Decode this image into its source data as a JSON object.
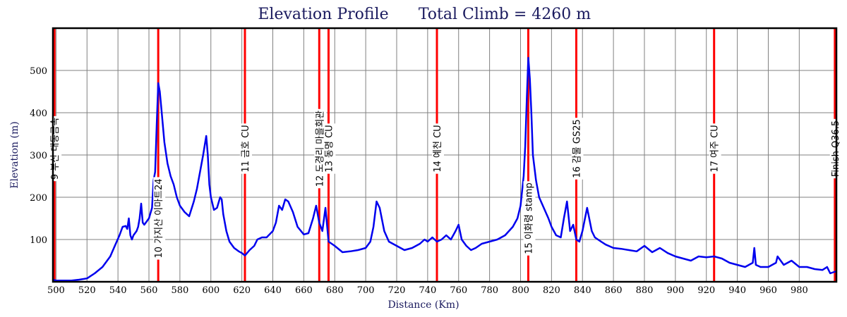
{
  "chart_data": {
    "type": "line",
    "title": "Elevation Profile",
    "subtitle": "Total Climb = 4260 m",
    "xlabel": "Distance (Km)",
    "ylabel": "Elevation (m)",
    "xlim": [
      498,
      1004
    ],
    "ylim": [
      0,
      600
    ],
    "x_ticks": [
      500,
      520,
      540,
      560,
      580,
      600,
      620,
      640,
      660,
      680,
      700,
      720,
      740,
      760,
      780,
      800,
      820,
      840,
      860,
      880,
      900,
      920,
      940,
      960,
      980
    ],
    "y_ticks": [
      100,
      200,
      300,
      400,
      500
    ],
    "grid": true,
    "series": [
      {
        "color": "#0000ee",
        "x": [
          498,
          500,
          505,
          510,
          515,
          520,
          525,
          530,
          535,
          538,
          541,
          543,
          545,
          546,
          547,
          548,
          549,
          550,
          552,
          553,
          554,
          555,
          556,
          557,
          558,
          560,
          562,
          563,
          564,
          565,
          566,
          567,
          568,
          570,
          572,
          574,
          576,
          578,
          580,
          583,
          586,
          589,
          591,
          593,
          595,
          597,
          598,
          599,
          600,
          602,
          604,
          606,
          607,
          608,
          610,
          612,
          615,
          618,
          620,
          622,
          625,
          628,
          630,
          633,
          636,
          640,
          642,
          644,
          646,
          648,
          650,
          653,
          656,
          660,
          663,
          666,
          668,
          670,
          672,
          674,
          676,
          678,
          680,
          685,
          690,
          695,
          700,
          703,
          705,
          707,
          709,
          712,
          715,
          720,
          725,
          730,
          735,
          738,
          740,
          743,
          746,
          749,
          752,
          755,
          758,
          760,
          762,
          765,
          768,
          771,
          775,
          780,
          785,
          790,
          795,
          798,
          800,
          802,
          803,
          804,
          805,
          806,
          807,
          808,
          810,
          812,
          815,
          818,
          820,
          823,
          826,
          828,
          830,
          832,
          834,
          836,
          838,
          840,
          843,
          846,
          848,
          850,
          852,
          855,
          860,
          865,
          870,
          875,
          880,
          885,
          890,
          895,
          900,
          905,
          910,
          915,
          920,
          925,
          930,
          935,
          940,
          945,
          950,
          951,
          952,
          955,
          960,
          965,
          966,
          970,
          975,
          980,
          985,
          990,
          995,
          998,
          1000,
          1004
        ],
        "y": [
          5,
          3,
          3,
          3,
          5,
          8,
          20,
          35,
          60,
          85,
          110,
          130,
          132,
          125,
          150,
          110,
          100,
          110,
          120,
          130,
          150,
          185,
          140,
          135,
          140,
          150,
          175,
          240,
          260,
          370,
          470,
          450,
          410,
          330,
          280,
          250,
          230,
          200,
          180,
          165,
          155,
          190,
          220,
          260,
          300,
          345,
          300,
          230,
          200,
          170,
          175,
          200,
          195,
          160,
          120,
          95,
          80,
          72,
          68,
          62,
          75,
          85,
          100,
          105,
          105,
          120,
          140,
          180,
          170,
          195,
          190,
          165,
          130,
          112,
          115,
          150,
          180,
          140,
          120,
          175,
          95,
          90,
          85,
          70,
          72,
          75,
          80,
          95,
          130,
          190,
          175,
          120,
          95,
          85,
          75,
          80,
          90,
          100,
          95,
          105,
          95,
          100,
          110,
          100,
          120,
          135,
          100,
          85,
          75,
          80,
          90,
          95,
          100,
          110,
          130,
          150,
          180,
          250,
          320,
          430,
          530,
          480,
          400,
          300,
          240,
          200,
          175,
          150,
          130,
          110,
          105,
          150,
          190,
          120,
          135,
          100,
          95,
          120,
          175,
          120,
          105,
          100,
          95,
          88,
          80,
          78,
          75,
          72,
          85,
          70,
          80,
          68,
          60,
          55,
          50,
          60,
          58,
          60,
          55,
          45,
          40,
          35,
          45,
          80,
          40,
          35,
          35,
          45,
          60,
          40,
          50,
          35,
          35,
          30,
          28,
          35,
          20,
          25
        ]
      }
    ],
    "checkpoints": [
      {
        "x": 499,
        "label": "9 부산 대동금속",
        "label_y": 315
      },
      {
        "x": 566,
        "label": "10 가지산 이마트24",
        "label_y": 150
      },
      {
        "x": 622,
        "label": "11 금호 CU",
        "label_y": 315
      },
      {
        "x": 670,
        "label": "12 도경리 마을회관",
        "label_y": 315
      },
      {
        "x": 676,
        "label": "13 동명 CU",
        "label_y": 315
      },
      {
        "x": 746,
        "label": "14 예천 CU",
        "label_y": 315
      },
      {
        "x": 805,
        "label": "15 이화령 stamp",
        "label_y": 150
      },
      {
        "x": 836,
        "label": "16 감물 GS25",
        "label_y": 315
      },
      {
        "x": 925,
        "label": "17 여주 CU",
        "label_y": 315
      },
      {
        "x": 1003,
        "label": "Finish Q36.5",
        "label_y": 315
      }
    ]
  }
}
